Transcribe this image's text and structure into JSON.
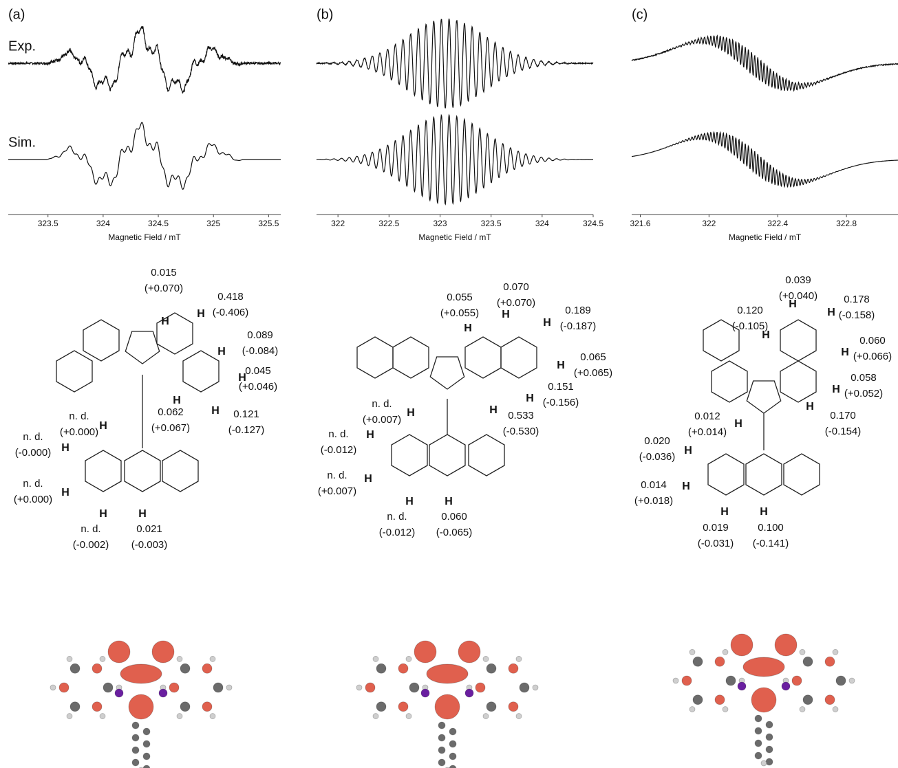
{
  "panels": [
    {
      "label": "(a)",
      "traces": [
        "Exp.",
        "Sim."
      ],
      "xlabel": "Magnetic Field / mT",
      "xlim": [
        323.14,
        325.61
      ],
      "xticks": [
        323.5,
        324,
        324.5,
        325,
        325.5
      ],
      "couplings": [
        {
          "value": "0.015",
          "calc": "(+0.070)",
          "atom": "H"
        },
        {
          "value": "0.418",
          "calc": "(-0.406)",
          "atom": "H"
        },
        {
          "value": "0.089",
          "calc": "(-0.084)",
          "atom": "H"
        },
        {
          "value": "0.045",
          "calc": "(+0.046)",
          "atom": "H"
        },
        {
          "value": "0.121",
          "calc": "(-0.127)",
          "atom": "H"
        },
        {
          "value": "0.062",
          "calc": "(+0.067)",
          "atom": "H"
        },
        {
          "value": "n. d.",
          "calc": "(+0.000)",
          "atom": "H"
        },
        {
          "value": "n. d.",
          "calc": "(-0.000)",
          "atom": "H"
        },
        {
          "value": "n. d.",
          "calc": "(+0.000)",
          "atom": "H"
        },
        {
          "value": "n. d.",
          "calc": "(-0.002)",
          "atom": "H"
        },
        {
          "value": "0.021",
          "calc": "(-0.003)",
          "atom": "H"
        }
      ]
    },
    {
      "label": "(b)",
      "xlabel": "Magnetic Field / mT",
      "xlim": [
        321.79,
        324.5
      ],
      "xticks": [
        322,
        322.5,
        323,
        323.5,
        324,
        324.5
      ],
      "couplings": [
        {
          "value": "0.055",
          "calc": "(+0.055)",
          "atom": "H"
        },
        {
          "value": "0.070",
          "calc": "(+0.070)",
          "atom": "H"
        },
        {
          "value": "0.189",
          "calc": "(-0.187)",
          "atom": "H"
        },
        {
          "value": "0.065",
          "calc": "(+0.065)",
          "atom": "H"
        },
        {
          "value": "0.151",
          "calc": "(-0.156)",
          "atom": "H"
        },
        {
          "value": "0.533",
          "calc": "(-0.530)",
          "atom": "H"
        },
        {
          "value": "n. d.",
          "calc": "(+0.007)",
          "atom": "H"
        },
        {
          "value": "n. d.",
          "calc": "(-0.012)",
          "atom": "H"
        },
        {
          "value": "n. d.",
          "calc": "(+0.007)",
          "atom": "H"
        },
        {
          "value": "n. d.",
          "calc": "(-0.012)",
          "atom": "H"
        },
        {
          "value": "0.060",
          "calc": "(-0.065)",
          "atom": "H"
        }
      ]
    },
    {
      "label": "(c)",
      "xlabel": "Magnetic Field / mT",
      "xlim": [
        321.55,
        323.1
      ],
      "xticks": [
        321.6,
        322,
        322.4,
        322.8
      ],
      "couplings": [
        {
          "value": "0.039",
          "calc": "(+0.040)",
          "atom": "H"
        },
        {
          "value": "0.120",
          "calc": "(-0.105)",
          "atom": "H"
        },
        {
          "value": "0.178",
          "calc": "(-0.158)",
          "atom": "H"
        },
        {
          "value": "0.060",
          "calc": "(+0.066)",
          "atom": "H"
        },
        {
          "value": "0.058",
          "calc": "(+0.052)",
          "atom": "H"
        },
        {
          "value": "0.170",
          "calc": "(-0.154)",
          "atom": "H"
        },
        {
          "value": "0.012",
          "calc": "(+0.014)",
          "atom": "H"
        },
        {
          "value": "0.020",
          "calc": "(-0.036)",
          "atom": "H"
        },
        {
          "value": "0.014",
          "calc": "(+0.018)",
          "atom": "H"
        },
        {
          "value": "0.019",
          "calc": "(-0.031)",
          "atom": "H"
        },
        {
          "value": "0.100",
          "calc": "(-0.141)",
          "atom": "H"
        }
      ]
    }
  ]
}
